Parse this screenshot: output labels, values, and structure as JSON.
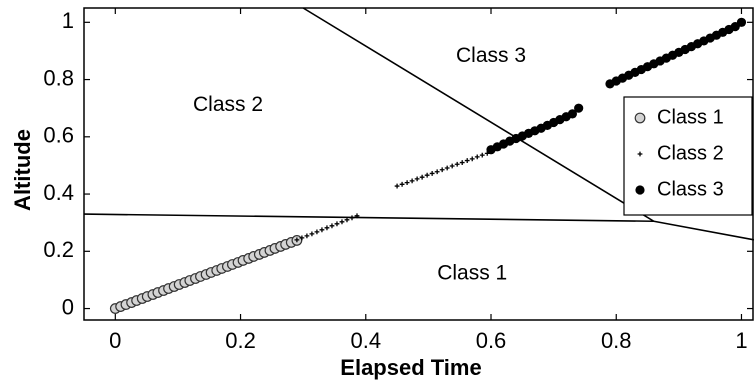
{
  "colors": {
    "class1_fill": "#d3d3d3",
    "class1_stroke": "#333333",
    "class2": "#000000",
    "class3": "#000000",
    "boundary": "#000000"
  },
  "chart_data": {
    "type": "scatter",
    "title": "",
    "xlabel": "Elapsed Time",
    "ylabel": "Altitude",
    "xlim": [
      -0.05,
      1.02
    ],
    "ylim": [
      -0.04,
      1.05
    ],
    "grid": false,
    "legend_position": "right",
    "x_ticks": [
      0,
      0.2,
      0.4,
      0.6,
      0.8,
      1
    ],
    "x_tick_labels": [
      "0",
      "0.2",
      "0.4",
      "0.6",
      "0.8",
      "1"
    ],
    "y_ticks": [
      0,
      0.2,
      0.4,
      0.6,
      0.8,
      1
    ],
    "y_tick_labels": [
      "0",
      "0.2",
      "0.4",
      "0.6",
      "0.8",
      "1"
    ],
    "series": [
      {
        "name": "Class 1",
        "marker": "circle-gray",
        "x": [
          0.0,
          0.0085,
          0.017,
          0.026,
          0.034,
          0.043,
          0.051,
          0.06,
          0.068,
          0.077,
          0.085,
          0.094,
          0.102,
          0.111,
          0.119,
          0.128,
          0.136,
          0.145,
          0.153,
          0.162,
          0.17,
          0.179,
          0.187,
          0.196,
          0.204,
          0.213,
          0.221,
          0.23,
          0.238,
          0.247,
          0.255,
          0.264,
          0.272,
          0.281,
          0.29
        ],
        "y": [
          0.0,
          0.007,
          0.014,
          0.021,
          0.028,
          0.035,
          0.042,
          0.049,
          0.056,
          0.063,
          0.07,
          0.077,
          0.084,
          0.091,
          0.098,
          0.105,
          0.112,
          0.119,
          0.126,
          0.133,
          0.14,
          0.147,
          0.154,
          0.161,
          0.168,
          0.175,
          0.182,
          0.189,
          0.196,
          0.203,
          0.21,
          0.217,
          0.224,
          0.231,
          0.238
        ]
      },
      {
        "name": "Class 2",
        "marker": "plus",
        "x": [
          0.29,
          0.298,
          0.306,
          0.314,
          0.322,
          0.33,
          0.338,
          0.346,
          0.354,
          0.362,
          0.37,
          0.378,
          0.386,
          0.45,
          0.458,
          0.466,
          0.474,
          0.482,
          0.49,
          0.498,
          0.506,
          0.514,
          0.522,
          0.53,
          0.538,
          0.546,
          0.554,
          0.562,
          0.57,
          0.578,
          0.586,
          0.594,
          0.6
        ],
        "y": [
          0.24,
          0.247,
          0.254,
          0.261,
          0.268,
          0.275,
          0.282,
          0.289,
          0.296,
          0.303,
          0.31,
          0.317,
          0.324,
          0.428,
          0.434,
          0.44,
          0.446,
          0.453,
          0.459,
          0.466,
          0.472,
          0.478,
          0.485,
          0.491,
          0.498,
          0.504,
          0.51,
          0.517,
          0.523,
          0.53,
          0.536,
          0.542,
          0.548
        ]
      },
      {
        "name": "Class 3",
        "marker": "circle-black",
        "x": [
          0.6,
          0.61,
          0.62,
          0.63,
          0.64,
          0.65,
          0.66,
          0.67,
          0.68,
          0.69,
          0.7,
          0.71,
          0.72,
          0.73,
          0.74,
          0.79,
          0.8,
          0.81,
          0.82,
          0.83,
          0.84,
          0.85,
          0.86,
          0.87,
          0.88,
          0.89,
          0.9,
          0.91,
          0.92,
          0.93,
          0.94,
          0.95,
          0.96,
          0.97,
          0.98,
          0.99,
          1.0
        ],
        "y": [
          0.555,
          0.565,
          0.575,
          0.585,
          0.594,
          0.603,
          0.612,
          0.621,
          0.63,
          0.64,
          0.65,
          0.66,
          0.67,
          0.68,
          0.7,
          0.785,
          0.795,
          0.805,
          0.815,
          0.825,
          0.835,
          0.845,
          0.855,
          0.865,
          0.875,
          0.885,
          0.895,
          0.905,
          0.915,
          0.925,
          0.935,
          0.945,
          0.955,
          0.965,
          0.975,
          0.985,
          1.0
        ]
      }
    ],
    "decision_boundaries": [
      {
        "x": [
          -0.05,
          0.86,
          1.02
        ],
        "y": [
          0.33,
          0.305,
          0.24
        ]
      },
      {
        "x": [
          0.3,
          0.86
        ],
        "y": [
          1.05,
          0.305
        ]
      }
    ],
    "annotations": [
      {
        "text": "Class 1",
        "x": 0.57,
        "y": 0.12
      },
      {
        "text": "Class 2",
        "x": 0.18,
        "y": 0.71
      },
      {
        "text": "Class 3",
        "x": 0.6,
        "y": 0.88
      }
    ]
  }
}
